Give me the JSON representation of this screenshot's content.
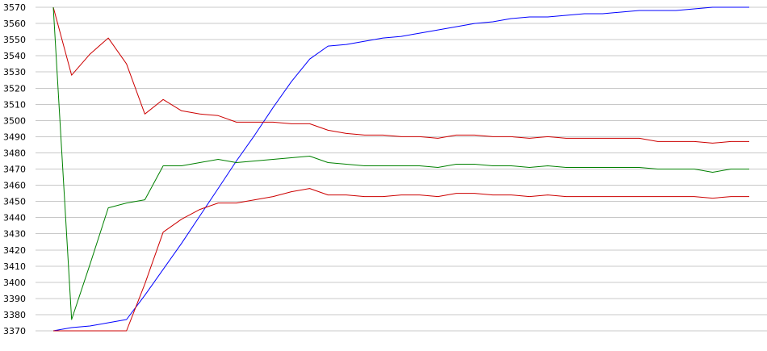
{
  "chart_data": {
    "type": "line",
    "title": "",
    "xlabel": "",
    "ylabel": "",
    "ylim": [
      3370,
      3570
    ],
    "yticks": [
      3570,
      3560,
      3550,
      3540,
      3530,
      3520,
      3510,
      3500,
      3490,
      3480,
      3470,
      3460,
      3450,
      3440,
      3430,
      3420,
      3410,
      3400,
      3390,
      3380,
      3370
    ],
    "x": [
      0,
      1,
      2,
      3,
      4,
      5,
      6,
      7,
      8,
      9,
      10,
      11,
      12,
      13,
      14,
      15,
      16,
      17,
      18,
      19,
      20,
      21,
      22,
      23,
      24,
      25,
      26,
      27,
      28,
      29,
      30,
      31,
      32,
      33,
      34,
      35,
      36,
      37,
      38
    ],
    "grid": true,
    "legend": "none",
    "series": [
      {
        "color": "#0000ff",
        "values": [
          3370,
          3372,
          3373,
          3375,
          3377,
          3392,
          3408,
          3424,
          3441,
          3458,
          3475,
          3491,
          3508,
          3524,
          3538,
          3546,
          3547,
          3549,
          3551,
          3552,
          3554,
          3556,
          3558,
          3560,
          3561,
          3563,
          3564,
          3564,
          3565,
          3566,
          3566,
          3567,
          3568,
          3568,
          3568,
          3569,
          3570,
          3570,
          3570
        ]
      },
      {
        "color": "#cc0000",
        "values": [
          3570,
          3528,
          3541,
          3551,
          3535,
          3504,
          3513,
          3506,
          3504,
          3503,
          3499,
          3499,
          3499,
          3498,
          3498,
          3494,
          3492,
          3491,
          3491,
          3490,
          3490,
          3489,
          3491,
          3491,
          3490,
          3490,
          3489,
          3490,
          3489,
          3489,
          3489,
          3489,
          3489,
          3487,
          3487,
          3487,
          3486,
          3487,
          3487
        ]
      },
      {
        "color": "#008000",
        "values": [
          3570,
          3377,
          3411,
          3446,
          3449,
          3451,
          3472,
          3472,
          3474,
          3476,
          3474,
          3475,
          3476,
          3477,
          3478,
          3474,
          3473,
          3472,
          3472,
          3472,
          3472,
          3471,
          3473,
          3473,
          3472,
          3472,
          3471,
          3472,
          3471,
          3471,
          3471,
          3471,
          3471,
          3470,
          3470,
          3470,
          3468,
          3470,
          3470
        ]
      },
      {
        "color": "#cc0000",
        "values": [
          3370,
          3370,
          3370,
          3370,
          3370,
          3399,
          3431,
          3439,
          3445,
          3449,
          3449,
          3451,
          3453,
          3456,
          3458,
          3454,
          3454,
          3453,
          3453,
          3454,
          3454,
          3453,
          3455,
          3455,
          3454,
          3454,
          3453,
          3454,
          3453,
          3453,
          3453,
          3453,
          3453,
          3453,
          3453,
          3453,
          3452,
          3453,
          3453
        ]
      }
    ]
  }
}
